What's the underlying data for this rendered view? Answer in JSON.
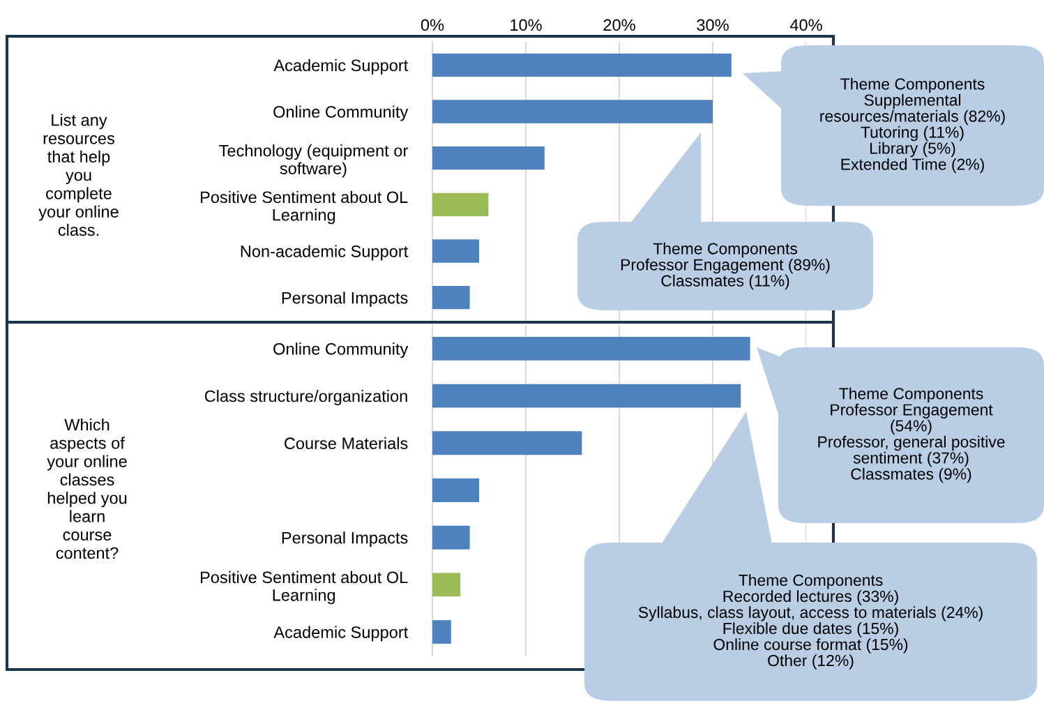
{
  "chart_data": [
    {
      "type": "bar",
      "orientation": "horizontal",
      "ylabel": "List any\nresources\nthat help\nyou\ncomplete\nyour online\nclass.",
      "categories": [
        "Academic Support",
        "Online Community",
        "Technology (equipment or\nsoftware)",
        "Positive Sentiment about OL\nLearning",
        "Non-academic Support",
        "Personal Impacts"
      ],
      "values": [
        32,
        30,
        12,
        6,
        5,
        4
      ],
      "colors": [
        "#4f81bd",
        "#4f81bd",
        "#4f81bd",
        "#9bbb59",
        "#4f81bd",
        "#4f81bd"
      ],
      "xlim": [
        0,
        40
      ],
      "xticks": [
        {
          "value": 0,
          "label": "0%"
        },
        {
          "value": 10,
          "label": "10%"
        },
        {
          "value": 20,
          "label": "20%"
        },
        {
          "value": 30,
          "label": "30%"
        },
        {
          "value": 40,
          "label": "40%"
        }
      ],
      "grid": "x",
      "annotations": [
        "Theme Components\nSupplemental\nresources/materials (82%)\nTutoring (11%)\nLibrary (5%)\nExtended Time (2%)",
        "Theme Components\nProfessor Engagement (89%)\nClassmates (11%)"
      ]
    },
    {
      "type": "bar",
      "orientation": "horizontal",
      "ylabel": "Which\naspects of\nyour online\nclasses\nhelped you\nlearn\ncourse\ncontent?",
      "categories": [
        "Online Community",
        "Class structure/organization",
        "Course Materials",
        null,
        "Personal Impacts",
        "Positive Sentiment about OL\nLearning",
        "Academic Support"
      ],
      "values": [
        34,
        33,
        16,
        5,
        4,
        3,
        2
      ],
      "colors": [
        "#4f81bd",
        "#4f81bd",
        "#4f81bd",
        "#4f81bd",
        "#4f81bd",
        "#9bbb59",
        "#4f81bd"
      ],
      "xlim": [
        0,
        40
      ],
      "xticks": [
        {
          "value": 0,
          "label": null
        },
        {
          "value": 10,
          "label": null
        },
        {
          "value": 20,
          "label": null
        },
        {
          "value": 30,
          "label": null
        },
        {
          "value": 40,
          "label": null
        }
      ],
      "grid": "x",
      "tick_labels": "y",
      "annotations": [
        "Theme Components\nProfessor Engagement\n(54%)\nProfessor, general positive\nsentiment (37%)\nClassmates (9%)",
        "Theme Components\nRecorded lectures (33%)\nSyllabus, class layout, access to materials (24%)\nFlexible due dates (15%)\nOnline course format (15%)\nOther (12%)"
      ]
    }
  ]
}
